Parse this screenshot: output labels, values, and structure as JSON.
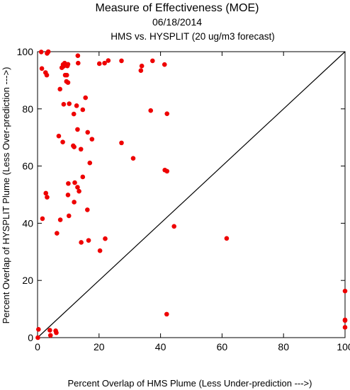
{
  "chart_data": {
    "type": "scatter",
    "title": "Measure of Effectiveness (MOE)",
    "subtitle": "06/18/2014",
    "subtitle2": "HMS vs. HYSPLIT  (20 ug/m3 forecast)",
    "xlabel": "Percent Overlap of HMS Plume (Less Under-prediction --->)",
    "ylabel": "Percent Overlap of HYSPLIT Plume (Less Over-prediction --->)",
    "xlim": [
      0,
      100
    ],
    "ylim": [
      0,
      100
    ],
    "xticks": [
      0,
      20,
      40,
      60,
      80,
      100
    ],
    "yticks": [
      0,
      20,
      40,
      60,
      80,
      100
    ],
    "xtick_labels": [
      "0",
      "20",
      "40",
      "60",
      "80",
      "100"
    ],
    "ytick_labels": [
      "0",
      "20",
      "40",
      "60",
      "80",
      "100"
    ],
    "grid": false,
    "reference_line": "y = x",
    "point_color": "#ee0000",
    "line_color": "#000000",
    "points": [
      [
        1.2,
        99.9
      ],
      [
        3.3,
        99.7
      ],
      [
        3.5,
        100.0
      ],
      [
        3.1,
        99.4
      ],
      [
        1.4,
        94.1
      ],
      [
        2.6,
        92.7
      ],
      [
        3.0,
        91.8
      ],
      [
        8.3,
        95.5
      ],
      [
        8.8,
        96.0
      ],
      [
        9.9,
        95.6
      ],
      [
        8.5,
        94.9
      ],
      [
        7.9,
        94.4
      ],
      [
        9.7,
        95.0
      ],
      [
        13.1,
        98.6
      ],
      [
        13.2,
        96.0
      ],
      [
        20.1,
        95.8
      ],
      [
        21.8,
        96.0
      ],
      [
        23.0,
        96.9
      ],
      [
        27.3,
        96.8
      ],
      [
        33.9,
        95.0
      ],
      [
        33.6,
        93.4
      ],
      [
        37.4,
        96.8
      ],
      [
        41.3,
        95.5
      ],
      [
        9.0,
        91.8
      ],
      [
        9.5,
        91.8
      ],
      [
        9.4,
        89.6
      ],
      [
        9.9,
        89.2
      ],
      [
        7.3,
        86.9
      ],
      [
        10.3,
        81.8
      ],
      [
        8.5,
        81.6
      ],
      [
        12.7,
        81.1
      ],
      [
        14.7,
        79.7
      ],
      [
        11.8,
        78.2
      ],
      [
        15.6,
        83.9
      ],
      [
        36.8,
        79.4
      ],
      [
        42.1,
        78.3
      ],
      [
        13.0,
        72.8
      ],
      [
        16.3,
        71.8
      ],
      [
        17.7,
        69.4
      ],
      [
        6.9,
        70.5
      ],
      [
        8.2,
        68.4
      ],
      [
        11.6,
        67.1
      ],
      [
        11.9,
        66.7
      ],
      [
        14.1,
        65.9
      ],
      [
        27.3,
        68.1
      ],
      [
        31.1,
        62.7
      ],
      [
        17.0,
        61.1
      ],
      [
        41.4,
        58.6
      ],
      [
        42.1,
        58.2
      ],
      [
        14.7,
        56.2
      ],
      [
        10.0,
        53.9
      ],
      [
        12.1,
        54.2
      ],
      [
        13.0,
        52.6
      ],
      [
        13.5,
        51.2
      ],
      [
        2.7,
        50.5
      ],
      [
        3.1,
        49.1
      ],
      [
        9.9,
        49.9
      ],
      [
        11.9,
        47.4
      ],
      [
        16.2,
        44.7
      ],
      [
        1.6,
        41.6
      ],
      [
        7.4,
        41.2
      ],
      [
        10.2,
        42.6
      ],
      [
        44.4,
        38.9
      ],
      [
        6.3,
        36.5
      ],
      [
        22.0,
        34.6
      ],
      [
        16.6,
        34.0
      ],
      [
        14.2,
        33.3
      ],
      [
        20.3,
        30.4
      ],
      [
        61.5,
        34.7
      ],
      [
        100.0,
        16.3
      ],
      [
        42.0,
        8.2
      ],
      [
        100.0,
        6.2
      ],
      [
        100.0,
        6.0
      ],
      [
        100.0,
        3.6
      ],
      [
        0.3,
        2.9
      ],
      [
        4.0,
        2.6
      ],
      [
        5.9,
        2.4
      ],
      [
        6.1,
        1.7
      ],
      [
        4.2,
        0.8
      ],
      [
        0.1,
        0.0
      ]
    ]
  }
}
